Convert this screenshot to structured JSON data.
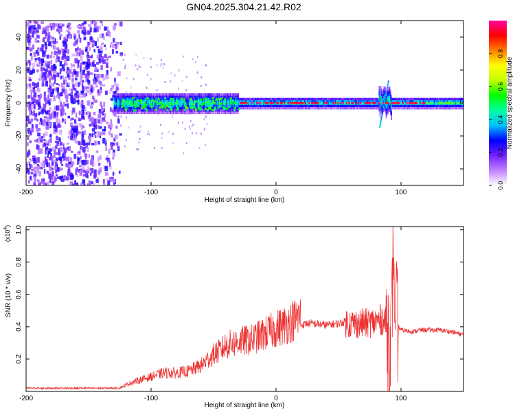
{
  "figure_title": "GN04.2025.304.21.42.R02",
  "chart_data": [
    {
      "type": "heatmap",
      "title": "GN04.2025.304.21.42.R02",
      "xlabel": "Height of straight line (km)",
      "ylabel": "Frequency (Hz)",
      "xlim": [
        -200,
        150
      ],
      "ylim": [
        -50,
        50
      ],
      "xticks": [
        -200,
        -100,
        0,
        100
      ],
      "xtick_labels": [
        "-200",
        "-100",
        "0",
        "100"
      ],
      "yticks": [
        -40,
        -20,
        0,
        20,
        40
      ],
      "ytick_labels": [
        "-40",
        "-20",
        "0",
        "20",
        "40"
      ],
      "colorbar": {
        "label": "Normalized spectral amplitude",
        "range": [
          0,
          1
        ],
        "ticks": [
          0.0,
          0.2,
          0.4,
          0.6,
          0.8
        ],
        "tick_labels": [
          "0.0",
          "0.2",
          "0.4",
          "0.6",
          "0.8"
        ],
        "colors": [
          "#ffffff",
          "#c080ff",
          "#7020ff",
          "#0000ff",
          "#00c0ff",
          "#00ffa0",
          "#00ff00",
          "#c0ff00",
          "#ffff00",
          "#ff8000",
          "#ff0000",
          "#ff00a0"
        ]
      },
      "regions": [
        {
          "name": "diffuse noise",
          "x_range": [
            -200,
            -130
          ],
          "freq_range": [
            -50,
            50
          ],
          "amplitude": 0.15
        },
        {
          "name": "ramp",
          "x_range": [
            -130,
            -30
          ],
          "freq_range": [
            -5,
            5
          ],
          "amplitude": 0.35
        },
        {
          "name": "central line",
          "x_range": [
            -30,
            150
          ],
          "freq_center": 0,
          "amplitude": 0.95
        },
        {
          "name": "disturbance",
          "x_range": [
            82,
            92
          ],
          "freq_range": [
            -15,
            15
          ],
          "amplitude": 0.5
        }
      ]
    },
    {
      "type": "line",
      "xlabel": "Height of straight line (km)",
      "ylabel": "SNR (10 * v/v)",
      "y_multiplier": "(x10",
      "y_multiplier_exp": "4",
      "y_multiplier_close": ")",
      "xlim": [
        -200,
        150
      ],
      "ylim": [
        0,
        1.02
      ],
      "xticks": [
        -200,
        -100,
        0,
        100
      ],
      "xtick_labels": [
        "-200",
        "-100",
        "0",
        "100"
      ],
      "yticks": [
        0.2,
        0.4,
        0.6,
        0.8,
        1.0
      ],
      "ytick_labels": [
        "0.2",
        "0.4",
        "0.6",
        "0.8",
        "1.0"
      ],
      "series": [
        {
          "name": "SNR",
          "color": "#ee3333",
          "x": [
            -200,
            -180,
            -160,
            -140,
            -125,
            -115,
            -100,
            -90,
            -80,
            -70,
            -60,
            -50,
            -45,
            -40,
            -30,
            -20,
            -10,
            0,
            10,
            20,
            25,
            30,
            40,
            50,
            55,
            60,
            70,
            80,
            85,
            88,
            90,
            92,
            93,
            94,
            95,
            96,
            98,
            100,
            110,
            115,
            120,
            130,
            140,
            150
          ],
          "y": [
            0.02,
            0.02,
            0.02,
            0.02,
            0.02,
            0.05,
            0.08,
            0.1,
            0.1,
            0.11,
            0.14,
            0.2,
            0.22,
            0.25,
            0.27,
            0.28,
            0.31,
            0.34,
            0.37,
            0.41,
            0.42,
            0.42,
            0.41,
            0.42,
            0.43,
            0.42,
            0.42,
            0.43,
            0.45,
            0.42,
            0.35,
            0.3,
            0.55,
            0.98,
            0.3,
            0.45,
            0.4,
            0.38,
            0.37,
            0.38,
            0.38,
            0.38,
            0.37,
            0.35
          ]
        }
      ]
    }
  ]
}
